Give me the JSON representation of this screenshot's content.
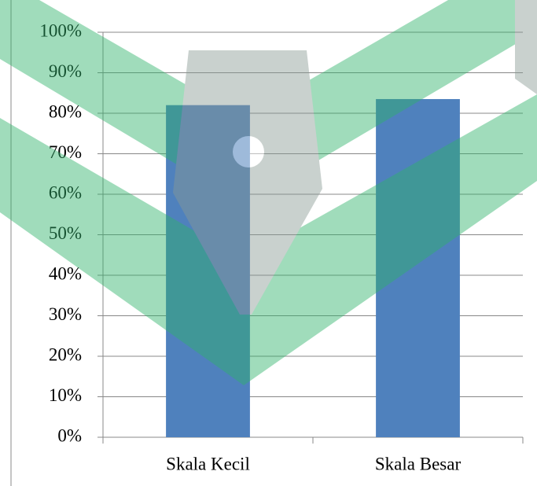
{
  "chart_data": {
    "type": "bar",
    "categories": [
      "Skala Kecil",
      "Skala Besar"
    ],
    "values": [
      82,
      83.5
    ],
    "color": "#4f81bd",
    "ylim": [
      0,
      100
    ],
    "yticks": [
      {
        "value": 0,
        "label": "0%"
      },
      {
        "value": 10,
        "label": "10%"
      },
      {
        "value": 20,
        "label": "20%"
      },
      {
        "value": 30,
        "label": "30%"
      },
      {
        "value": 40,
        "label": "40%"
      },
      {
        "value": 50,
        "label": "50%"
      },
      {
        "value": 60,
        "label": "60%"
      },
      {
        "value": 70,
        "label": "70%"
      },
      {
        "value": 80,
        "label": "80%"
      },
      {
        "value": 90,
        "label": "90%"
      },
      {
        "value": 100,
        "label": "100%"
      }
    ],
    "grid": true
  }
}
